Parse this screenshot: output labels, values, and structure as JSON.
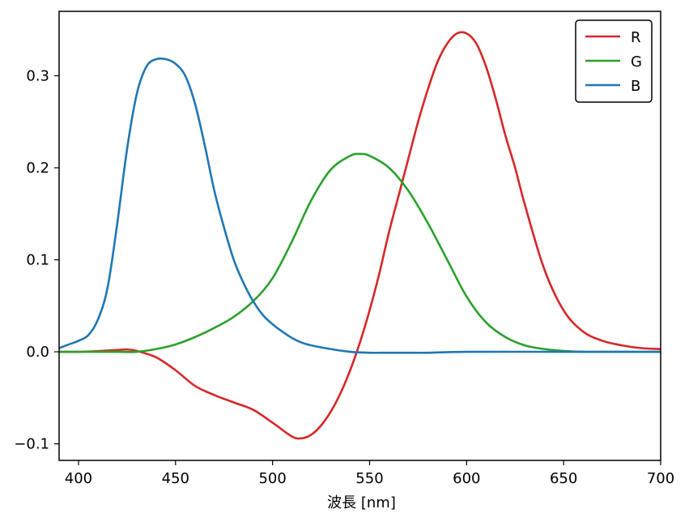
{
  "chart_data": {
    "type": "line",
    "xlabel": "波長 [nm]",
    "ylabel": "",
    "xlim": [
      390,
      700
    ],
    "ylim": [
      -0.118,
      0.37
    ],
    "xticks": [
      400,
      450,
      500,
      550,
      600,
      650,
      700
    ],
    "yticks": [
      -0.1,
      0.0,
      0.1,
      0.2,
      0.3
    ],
    "ytick_labels": [
      "−0.1",
      "0.0",
      "0.1",
      "0.2",
      "0.3"
    ],
    "grid": false,
    "legend_position": "top-right",
    "series": [
      {
        "name": "R",
        "color": "#d62728",
        "x": [
          390,
          400,
          410,
          420,
          425,
          430,
          440,
          450,
          460,
          470,
          480,
          490,
          500,
          510,
          515,
          520,
          525,
          530,
          535,
          540,
          545,
          550,
          555,
          560,
          565,
          570,
          575,
          580,
          585,
          590,
          595,
          600,
          605,
          610,
          615,
          620,
          625,
          630,
          640,
          650,
          660,
          670,
          680,
          690,
          700
        ],
        "y": [
          0.0,
          0.0,
          0.0008,
          0.002,
          0.0025,
          0.001,
          -0.006,
          -0.02,
          -0.037,
          -0.047,
          -0.055,
          -0.063,
          -0.077,
          -0.092,
          -0.094,
          -0.09,
          -0.08,
          -0.065,
          -0.045,
          -0.02,
          0.01,
          0.045,
          0.085,
          0.13,
          0.17,
          0.21,
          0.25,
          0.285,
          0.315,
          0.335,
          0.346,
          0.346,
          0.335,
          0.31,
          0.275,
          0.235,
          0.2,
          0.16,
          0.09,
          0.045,
          0.022,
          0.012,
          0.007,
          0.004,
          0.003
        ]
      },
      {
        "name": "G",
        "color": "#2ca02c",
        "x": [
          390,
          400,
          410,
          420,
          430,
          440,
          450,
          460,
          470,
          480,
          490,
          500,
          510,
          520,
          530,
          540,
          545,
          550,
          560,
          570,
          580,
          590,
          600,
          610,
          620,
          630,
          640,
          650,
          660,
          670,
          680,
          690,
          700
        ],
        "y": [
          0.0,
          0.0,
          0.0,
          0.0,
          0.0,
          0.003,
          0.008,
          0.016,
          0.026,
          0.038,
          0.055,
          0.08,
          0.12,
          0.165,
          0.198,
          0.213,
          0.215,
          0.213,
          0.2,
          0.175,
          0.14,
          0.1,
          0.06,
          0.032,
          0.016,
          0.007,
          0.003,
          0.001,
          0.0,
          0.0,
          0.0,
          0.0,
          0.0
        ]
      },
      {
        "name": "B",
        "color": "#1f77b4",
        "x": [
          390,
          395,
          400,
          405,
          410,
          415,
          420,
          425,
          430,
          435,
          440,
          445,
          450,
          455,
          460,
          465,
          470,
          475,
          480,
          485,
          490,
          495,
          500,
          505,
          510,
          515,
          520,
          530,
          540,
          550,
          560,
          570,
          580,
          600,
          650,
          700
        ],
        "y": [
          0.004,
          0.008,
          0.012,
          0.018,
          0.035,
          0.07,
          0.14,
          0.22,
          0.28,
          0.31,
          0.318,
          0.318,
          0.313,
          0.3,
          0.27,
          0.225,
          0.175,
          0.135,
          0.1,
          0.075,
          0.055,
          0.04,
          0.03,
          0.022,
          0.015,
          0.01,
          0.007,
          0.003,
          0.0,
          -0.001,
          -0.001,
          -0.001,
          -0.001,
          0.0,
          0.0,
          0.0
        ]
      }
    ]
  }
}
